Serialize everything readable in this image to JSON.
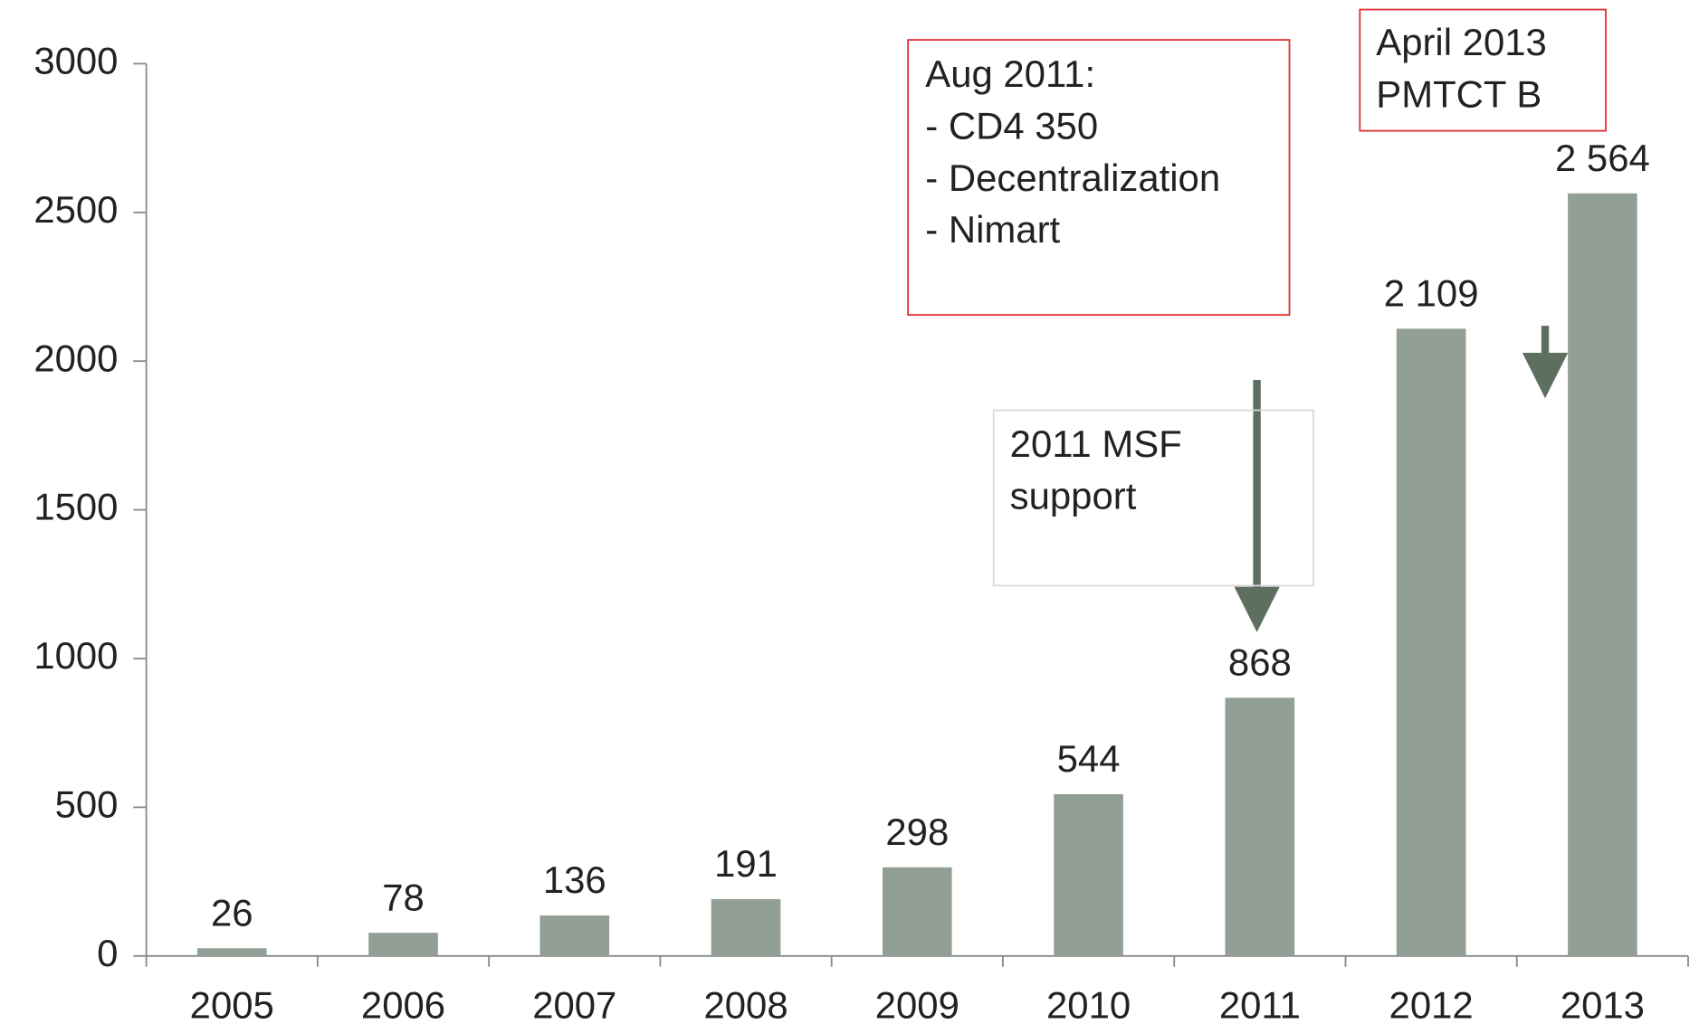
{
  "chart_data": {
    "type": "bar",
    "categories": [
      "2005",
      "2006",
      "2007",
      "2008",
      "2009",
      "2010",
      "2011",
      "2012",
      "2013"
    ],
    "values": [
      26,
      78,
      136,
      191,
      298,
      544,
      868,
      2109,
      2564
    ],
    "value_labels": [
      "26",
      "78",
      "136",
      "191",
      "298",
      "544",
      "868",
      "2 109",
      "2 564"
    ],
    "color": "#919f94",
    "ylim": [
      0,
      3000
    ],
    "yticks": [
      0,
      500,
      1000,
      1500,
      2000,
      2500,
      3000
    ],
    "grid": false,
    "annotations": [
      {
        "lines": [
          "Aug 2011:",
          "- CD4 350",
          "- Decentralization",
          "- Nimart"
        ],
        "border": "#e03030"
      },
      {
        "lines": [
          "April 2013",
          "PMTCT B"
        ],
        "border": "#e03030"
      },
      {
        "lines": [
          "2011 MSF",
          "support"
        ],
        "border": "#d9d9d9"
      }
    ]
  }
}
